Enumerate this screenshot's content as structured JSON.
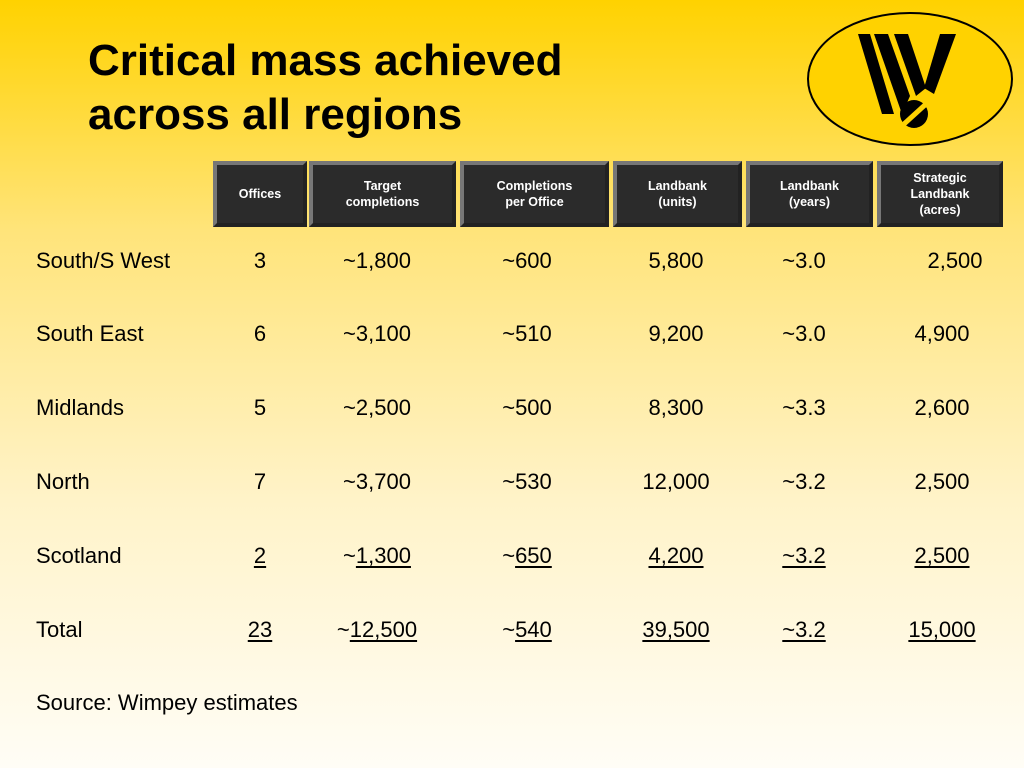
{
  "title": {
    "line1": "Critical mass achieved",
    "line2": "across all regions"
  },
  "logo": {
    "icon": "wimpey-w-logo-icon"
  },
  "table": {
    "headers": [
      "Offices",
      "Target\ncompletions",
      "Completions\nper Office",
      "Landbank\n(units)",
      "Landbank\n(years)",
      "Strategic\nLandbank\n(acres)"
    ],
    "rows": [
      {
        "region": "South/S West",
        "offices": "3",
        "target_prefix": "~",
        "target": "1,800",
        "per_office_prefix": "~",
        "per_office": "600",
        "units": "5,800",
        "years": "~3.0",
        "acres": "2,500"
      },
      {
        "region": "South East",
        "offices": "6",
        "target_prefix": "~",
        "target": "3,100",
        "per_office_prefix": "~",
        "per_office": "510",
        "units": "9,200",
        "years": "~3.0",
        "acres": "4,900"
      },
      {
        "region": "Midlands",
        "offices": "5",
        "target_prefix": "~",
        "target": "2,500",
        "per_office_prefix": "~",
        "per_office": "500",
        "units": "8,300",
        "years": "~3.3",
        "acres": "2,600"
      },
      {
        "region": "North",
        "offices": "7",
        "target_prefix": "~",
        "target": "3,700",
        "per_office_prefix": "~",
        "per_office": "530",
        "units": "12,000",
        "years": "~3.2",
        "acres": "2,500"
      },
      {
        "region": "Scotland",
        "offices": "2",
        "target_prefix": "~",
        "target": "1,300",
        "per_office_prefix": "~",
        "per_office": "650",
        "units": "4,200",
        "years": "~3.2",
        "acres": "2,500"
      },
      {
        "region": "Total",
        "offices": "23",
        "target_prefix": "~",
        "target": "12,500",
        "per_office_prefix": "~",
        "per_office": "540",
        "units": "39,500",
        "years": "~3.2",
        "acres": "15,000"
      }
    ]
  },
  "source": "Source: Wimpey estimates"
}
